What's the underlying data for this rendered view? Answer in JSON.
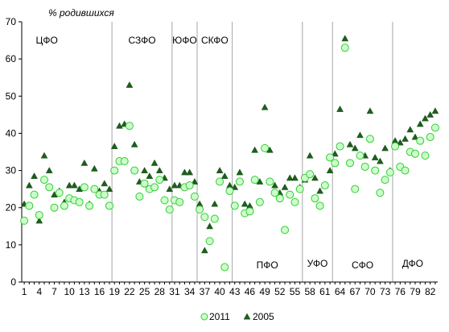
{
  "chart_data": {
    "type": "scatter",
    "ylabel": "% родившихся",
    "ylim": [
      0,
      70
    ],
    "yticks": [
      0,
      10,
      20,
      30,
      40,
      50,
      60,
      70
    ],
    "xlim": [
      0.5,
      83.5
    ],
    "xticks": [
      1,
      4,
      7,
      10,
      13,
      16,
      19,
      22,
      25,
      28,
      31,
      34,
      37,
      40,
      43,
      46,
      49,
      52,
      55,
      58,
      61,
      64,
      67,
      70,
      73,
      76,
      79,
      82
    ],
    "grid": false,
    "legend_position": "bottom",
    "region_dividers": [
      18.5,
      30.5,
      35.5,
      42.5,
      56.5,
      62.5,
      74.5
    ],
    "regions": [
      {
        "label": "ЦФО",
        "x": 5.5,
        "y": 65
      },
      {
        "label": "СЗФО",
        "x": 24.5,
        "y": 65
      },
      {
        "label": "ЮФО",
        "x": 33,
        "y": 65
      },
      {
        "label": "СКФО",
        "x": 39,
        "y": 65
      },
      {
        "label": "ПФО",
        "x": 49.5,
        "y": 4.5
      },
      {
        "label": "УФО",
        "x": 59.5,
        "y": 5
      },
      {
        "label": "СФО",
        "x": 68.5,
        "y": 4.5
      },
      {
        "label": "ДФО",
        "x": 78.5,
        "y": 5
      }
    ],
    "series": [
      {
        "name": "2011",
        "marker": "circle",
        "color": "#33cc33",
        "fill": "#ccffcc",
        "x": [
          1,
          2,
          3,
          4,
          5,
          6,
          7,
          8,
          9,
          10,
          11,
          12,
          13,
          14,
          15,
          16,
          17,
          18,
          19,
          20,
          21,
          22,
          23,
          24,
          25,
          26,
          27,
          28,
          29,
          30,
          31,
          32,
          33,
          34,
          35,
          36,
          37,
          38,
          39,
          40,
          41,
          42,
          43,
          44,
          45,
          46,
          47,
          48,
          49,
          50,
          51,
          52,
          53,
          54,
          55,
          56,
          57,
          58,
          59,
          60,
          61,
          62,
          63,
          64,
          65,
          66,
          67,
          68,
          69,
          70,
          71,
          72,
          73,
          74,
          75,
          76,
          77,
          78,
          79,
          80,
          81,
          82,
          83
        ],
        "y": [
          16.5,
          20.5,
          23.5,
          18,
          27.5,
          25.5,
          20,
          24,
          20.5,
          22.5,
          22,
          21.5,
          25.5,
          20.5,
          25,
          23.5,
          23.5,
          20.5,
          30,
          32.5,
          32.5,
          42,
          30,
          23,
          26.5,
          25,
          25.5,
          27.5,
          22,
          19.5,
          22,
          21.5,
          25.5,
          26,
          23,
          19.5,
          17.5,
          11,
          17,
          27,
          4,
          24.5,
          20.5,
          27,
          18.5,
          19,
          27.5,
          21.5,
          36,
          27,
          24,
          22.5,
          14,
          23.5,
          21.5,
          25,
          28,
          29,
          22.5,
          20.5,
          26,
          33.5,
          32,
          36.5,
          63,
          32,
          25,
          34,
          31,
          38.5,
          30,
          24,
          27.5,
          29.5,
          36.5,
          31,
          30,
          35,
          34.5,
          38,
          34,
          39,
          41.5
        ]
      },
      {
        "name": "2005",
        "marker": "triangle",
        "color": "#1f5c1f",
        "fill": "#1f5c1f",
        "x": [
          1,
          2,
          3,
          4,
          5,
          6,
          7,
          8,
          9,
          10,
          11,
          12,
          13,
          14,
          15,
          16,
          17,
          18,
          19,
          20,
          21,
          22,
          23,
          24,
          25,
          26,
          27,
          28,
          29,
          30,
          31,
          32,
          33,
          34,
          35,
          36,
          37,
          38,
          39,
          40,
          41,
          42,
          43,
          44,
          45,
          46,
          47,
          48,
          49,
          50,
          51,
          52,
          53,
          54,
          55,
          56,
          57,
          58,
          59,
          60,
          61,
          62,
          63,
          64,
          65,
          66,
          67,
          68,
          69,
          70,
          71,
          72,
          73,
          74,
          75,
          76,
          77,
          78,
          79,
          80,
          81,
          82,
          83
        ],
        "y": [
          21,
          26,
          28.5,
          16.5,
          34,
          30,
          23.5,
          24.5,
          21.5,
          26,
          26,
          25,
          32,
          21,
          30.5,
          24.5,
          26.5,
          25,
          36.5,
          42,
          42.5,
          53,
          37,
          27,
          30,
          28.5,
          32,
          30,
          28,
          25,
          26,
          26,
          29.5,
          29.5,
          27,
          21,
          8.5,
          15,
          21,
          30,
          28.5,
          26,
          25.5,
          29.5,
          21,
          20.5,
          35.5,
          27,
          47,
          35.5,
          26,
          24,
          25.5,
          28,
          28,
          25.5,
          27.5,
          34,
          28,
          24.5,
          26,
          30,
          34.5,
          46.5,
          65.5,
          37,
          36,
          39.5,
          34,
          46,
          33.5,
          32.5,
          36,
          30,
          38,
          37.5,
          38.5,
          41,
          39,
          42.5,
          44,
          45,
          46
        ]
      }
    ]
  }
}
